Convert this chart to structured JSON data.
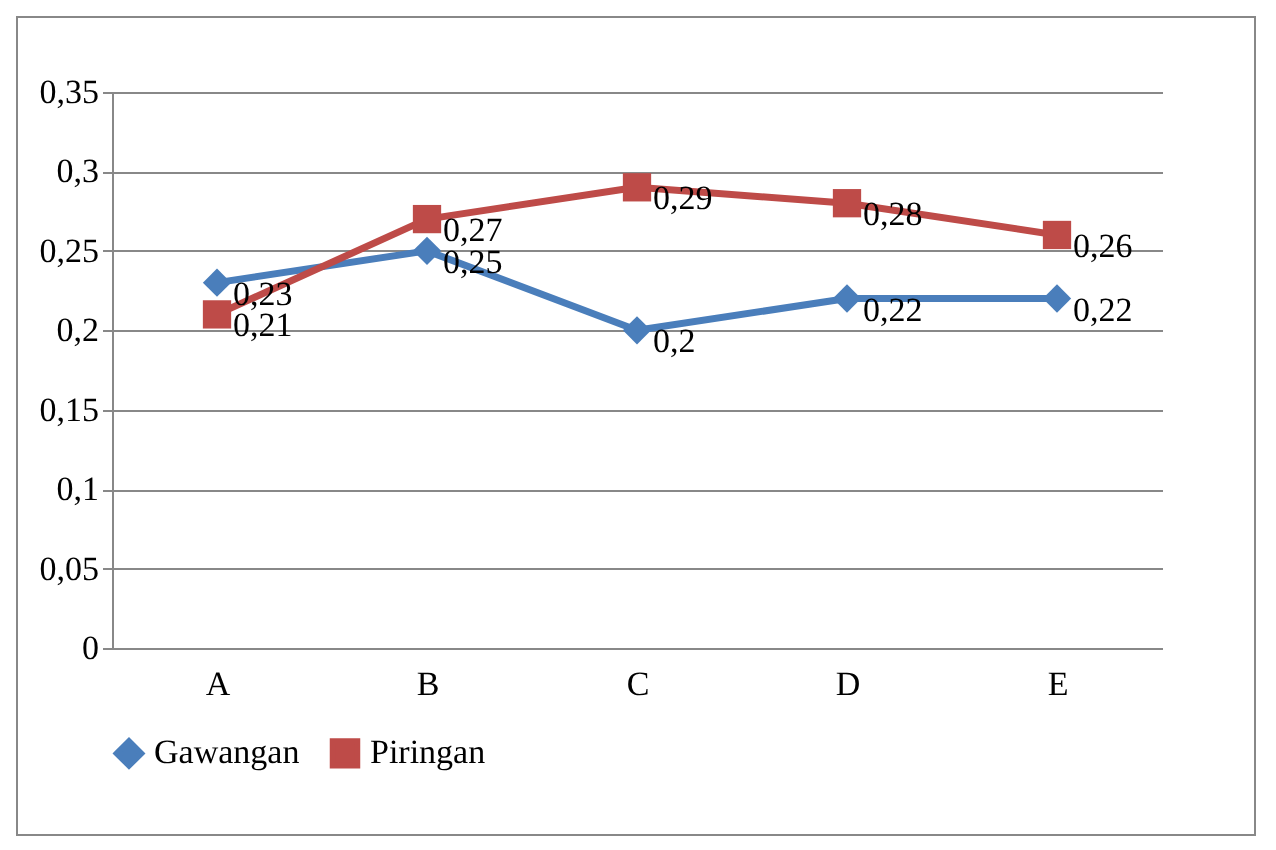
{
  "chart_data": {
    "type": "line",
    "categories": [
      "A",
      "B",
      "C",
      "D",
      "E"
    ],
    "series": [
      {
        "name": "Gawangan",
        "color": "#4a7ebb",
        "marker": "diamond",
        "values": [
          0.23,
          0.25,
          0.2,
          0.22,
          0.22
        ],
        "value_labels": [
          "0,23",
          "0,25",
          "0,2",
          "0,22",
          "0,22"
        ]
      },
      {
        "name": "Piringan",
        "color": "#be4b48",
        "marker": "square",
        "values": [
          0.21,
          0.27,
          0.29,
          0.28,
          0.26
        ],
        "value_labels": [
          "0,21",
          "0,27",
          "0,29",
          "0,28",
          "0,26"
        ]
      }
    ],
    "ylim": [
      0,
      0.35
    ],
    "yticks": [
      {
        "value": 0,
        "label": "0"
      },
      {
        "value": 0.05,
        "label": "0,05"
      },
      {
        "value": 0.1,
        "label": "0,1"
      },
      {
        "value": 0.15,
        "label": "0,15"
      },
      {
        "value": 0.2,
        "label": "0,2"
      },
      {
        "value": 0.25,
        "label": "0,25"
      },
      {
        "value": 0.3,
        "label": "0,3"
      },
      {
        "value": 0.35,
        "label": "0,35"
      }
    ],
    "grid": "y",
    "legend": "bottom"
  }
}
